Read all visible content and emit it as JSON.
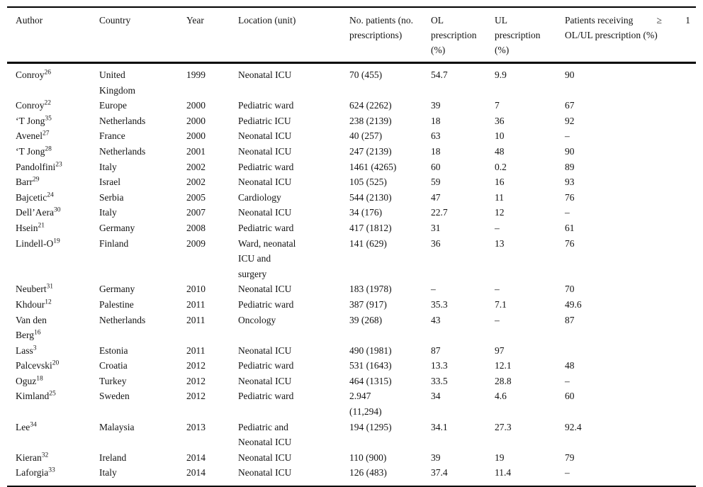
{
  "table": {
    "columns": [
      {
        "key": "author",
        "label": "Author"
      },
      {
        "key": "country",
        "label": "Country"
      },
      {
        "key": "year",
        "label": "Year"
      },
      {
        "key": "location",
        "label": "Location (unit)"
      },
      {
        "key": "patients",
        "label": "No. patients (no.\nprescriptions)"
      },
      {
        "key": "ol",
        "label": "OL\nprescription\n(%)"
      },
      {
        "key": "ul",
        "label": "UL\nprescription\n(%)"
      },
      {
        "key": "olul",
        "label": "Patients receiving ≥ 1 OL/UL prescription (%)",
        "header_line1_parts": [
          "Patients receiving",
          "≥",
          "1"
        ],
        "header_line2": "OL/UL prescription (%)"
      }
    ],
    "rows": [
      {
        "author": "Conroy",
        "ref": "26",
        "country": "United\nKingdom",
        "year": "1999",
        "location": "Neonatal ICU",
        "patients": "70 (455)",
        "ol": "54.7",
        "ul": "9.9",
        "olul": "90"
      },
      {
        "author": "Conroy",
        "ref": "22",
        "country": "Europe",
        "year": "2000",
        "location": "Pediatric ward",
        "patients": "624 (2262)",
        "ol": "39",
        "ul": "7",
        "olul": "67"
      },
      {
        "author": "‘T Jong",
        "ref": "35",
        "country": "Netherlands",
        "year": "2000",
        "location": "Pediatric ICU",
        "patients": "238 (2139)",
        "ol": "18",
        "ul": "36",
        "olul": "92"
      },
      {
        "author": "Avenel",
        "ref": "27",
        "country": "France",
        "year": "2000",
        "location": "Neonatal ICU",
        "patients": "40 (257)",
        "ol": "63",
        "ul": "10",
        "olul": "–"
      },
      {
        "author": "‘T Jong",
        "ref": "28",
        "country": "Netherlands",
        "year": "2001",
        "location": "Neonatal ICU",
        "patients": "247 (2139)",
        "ol": "18",
        "ul": "48",
        "olul": "90"
      },
      {
        "author": "Pandolfini",
        "ref": "23",
        "country": "Italy",
        "year": "2002",
        "location": "Pediatric ward",
        "patients": "1461 (4265)",
        "ol": "60",
        "ul": "0.2",
        "olul": "89"
      },
      {
        "author": "Barr",
        "ref": "29",
        "country": "Israel",
        "year": "2002",
        "location": "Neonatal ICU",
        "patients": "105 (525)",
        "ol": "59",
        "ul": "16",
        "olul": "93"
      },
      {
        "author": "Bajcetic",
        "ref": "24",
        "country": "Serbia",
        "year": "2005",
        "location": "Cardiology",
        "patients": "544 (2130)",
        "ol": "47",
        "ul": "11",
        "olul": "76"
      },
      {
        "author": "Dell’Aera",
        "ref": "30",
        "country": "Italy",
        "year": "2007",
        "location": "Neonatal ICU",
        "patients": "34 (176)",
        "ol": "22.7",
        "ul": "12",
        "olul": "–"
      },
      {
        "author": "Hsein",
        "ref": "21",
        "country": "Germany",
        "year": "2008",
        "location": "Pediatric ward",
        "patients": "417 (1812)",
        "ol": "31",
        "ul": "–",
        "olul": "61"
      },
      {
        "author": "Lindell-O",
        "ref": "19",
        "country": "Finland",
        "year": "2009",
        "location": "Ward, neonatal\nICU and\nsurgery",
        "patients": "141 (629)",
        "ol": "36",
        "ul": "13",
        "olul": "76"
      },
      {
        "author": "Neubert",
        "ref": "31",
        "country": "Germany",
        "year": "2010",
        "location": "Neonatal ICU",
        "patients": "183 (1978)",
        "ol": "–",
        "ul": "–",
        "olul": "70"
      },
      {
        "author": "Khdour",
        "ref": "12",
        "country": "Palestine",
        "year": "2011",
        "location": "Pediatric ward",
        "patients": "387 (917)",
        "ol": "35.3",
        "ul": "7.1",
        "olul": "49.6"
      },
      {
        "author": "Van den\nBerg",
        "ref": "16",
        "country": "Netherlands",
        "year": "2011",
        "location": "Oncology",
        "patients": "39 (268)",
        "ol": "43",
        "ul": "–",
        "olul": "87"
      },
      {
        "author": "Lass",
        "ref": "3",
        "country": "Estonia",
        "year": "2011",
        "location": "Neonatal ICU",
        "patients": "490 (1981)",
        "ol": "87",
        "ul": "97",
        "olul": ""
      },
      {
        "author": "Palcevski",
        "ref": "20",
        "country": "Croatia",
        "year": "2012",
        "location": "Pediatric ward",
        "patients": "531 (1643)",
        "ol": "13.3",
        "ul": "12.1",
        "olul": "48"
      },
      {
        "author": "Oguz",
        "ref": "18",
        "country": "Turkey",
        "year": "2012",
        "location": "Neonatal ICU",
        "patients": "464 (1315)",
        "ol": "33.5",
        "ul": "28.8",
        "olul": "–"
      },
      {
        "author": "Kimland",
        "ref": "25",
        "country": "Sweden",
        "year": "2012",
        "location": "Pediatric ward",
        "patients": "2.947\n(11,294)",
        "ol": "34",
        "ul": "4.6",
        "olul": "60"
      },
      {
        "author": "Lee",
        "ref": "34",
        "country": "Malaysia",
        "year": "2013",
        "location": "Pediatric and\nNeonatal ICU",
        "patients": "194 (1295)",
        "ol": "34.1",
        "ul": "27.3",
        "olul": "92.4"
      },
      {
        "author": "Kieran",
        "ref": "32",
        "country": "Ireland",
        "year": "2014",
        "location": "Neonatal ICU",
        "patients": "110 (900)",
        "ol": "39",
        "ul": "19",
        "olul": "79"
      },
      {
        "author": "Laforgia",
        "ref": "33",
        "country": "Italy",
        "year": "2014",
        "location": "Neonatal ICU",
        "patients": "126 (483)",
        "ol": "37.4",
        "ul": "11.4",
        "olul": "–"
      }
    ]
  }
}
